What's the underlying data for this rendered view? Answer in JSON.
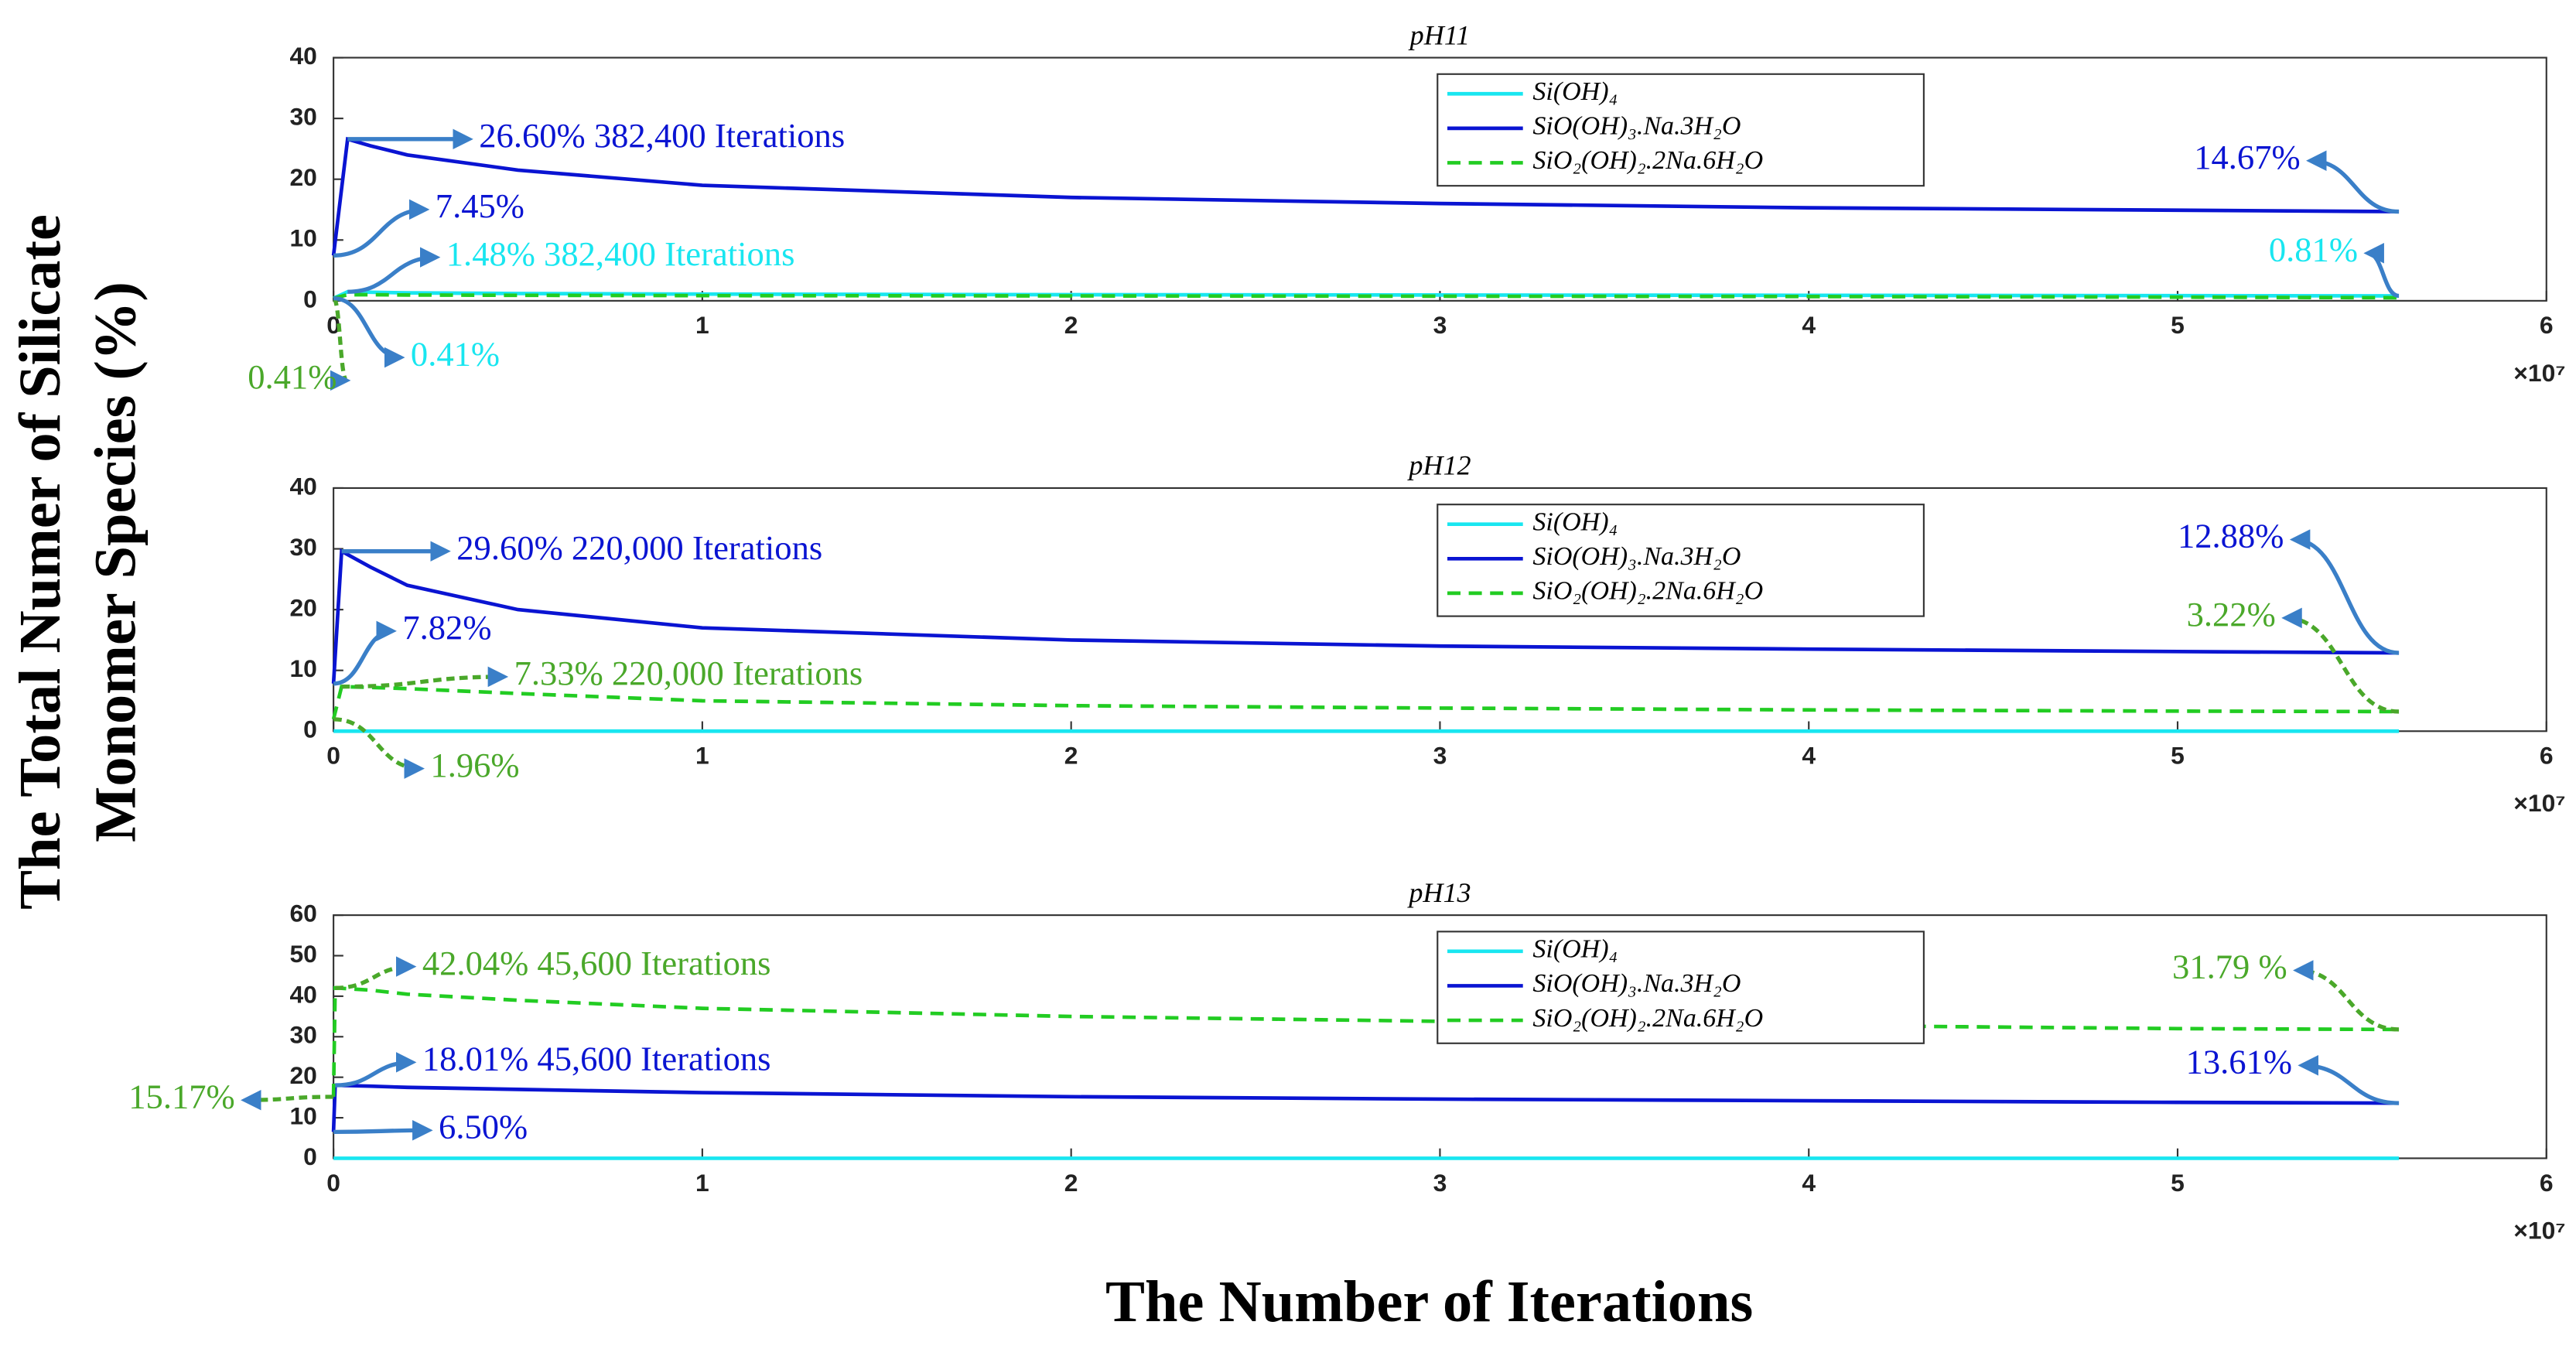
{
  "ylabel": [
    "The Total Numer of Silicate",
    "Monomer Species (%)"
  ],
  "xlabel": "The Number of Iterations",
  "chart_data": [
    {
      "type": "line",
      "title": "pH11",
      "x_multiplier": "×10⁷",
      "x": [
        0,
        0.03824,
        0.1,
        0.2,
        0.5,
        1,
        2,
        3,
        4,
        5,
        5.6
      ],
      "xlim": [
        0,
        6
      ],
      "xticks": [
        0,
        1,
        2,
        3,
        4,
        5,
        6
      ],
      "ylim": [
        0,
        40
      ],
      "yticks": [
        0,
        10,
        20,
        30,
        40
      ],
      "series": [
        {
          "name": "Si(OH)₄",
          "color": "#19e6f0",
          "linestyle": "solid",
          "values": [
            0.41,
            1.48,
            1.4,
            1.3,
            1.2,
            1.1,
            1.0,
            0.95,
            0.9,
            0.85,
            0.81
          ]
        },
        {
          "name": "SiO(OH)₃.Na.3H₂O",
          "color": "#0a14d2",
          "linestyle": "solid",
          "values": [
            7.45,
            26.6,
            25.5,
            24,
            21.5,
            19,
            17,
            16,
            15.3,
            14.9,
            14.67
          ]
        },
        {
          "name": "SiO₂(OH)₂.2Na.6H₂O",
          "color": "#22cc22",
          "linestyle": "dashed",
          "values": [
            0.41,
            1.0,
            1.0,
            0.95,
            0.9,
            0.85,
            0.8,
            0.75,
            0.7,
            0.6,
            0.5
          ]
        }
      ],
      "annotations": [
        {
          "text": "26.60% 382,400 Iterations",
          "color": "#0a14d2"
        },
        {
          "text": "7.45%",
          "color": "#0a14d2"
        },
        {
          "text": "1.48% 382,400 Iterations",
          "color": "#19e6f0"
        },
        {
          "text": "14.67%",
          "color": "#0a14d2"
        },
        {
          "text": "0.81%",
          "color": "#19e6f0"
        },
        {
          "text": "0.41%",
          "color": "#4aa82a"
        },
        {
          "text": "0.41%",
          "color": "#19e6f0"
        }
      ]
    },
    {
      "type": "line",
      "title": "pH12",
      "x_multiplier": "×10⁷",
      "x": [
        0,
        0.022,
        0.1,
        0.2,
        0.5,
        1,
        2,
        3,
        4,
        5,
        5.6
      ],
      "xlim": [
        0,
        6
      ],
      "xticks": [
        0,
        1,
        2,
        3,
        4,
        5,
        6
      ],
      "ylim": [
        0,
        40
      ],
      "yticks": [
        0,
        10,
        20,
        30,
        40
      ],
      "series": [
        {
          "name": "Si(OH)₄",
          "color": "#19e6f0",
          "linestyle": "solid",
          "values": [
            0,
            0,
            0,
            0,
            0,
            0,
            0,
            0,
            0,
            0,
            0
          ]
        },
        {
          "name": "SiO(OH)₃.Na.3H₂O",
          "color": "#0a14d2",
          "linestyle": "solid",
          "values": [
            7.82,
            29.6,
            27,
            24,
            20,
            17,
            15,
            14,
            13.5,
            13.1,
            12.88
          ]
        },
        {
          "name": "SiO₂(OH)₂.2Na.6H₂O",
          "color": "#22cc22",
          "linestyle": "dashed",
          "values": [
            1.96,
            7.33,
            7.2,
            7,
            6.2,
            5,
            4.2,
            3.8,
            3.5,
            3.3,
            3.22
          ]
        }
      ],
      "annotations": [
        {
          "text": "29.60% 220,000 Iterations",
          "color": "#0a14d2"
        },
        {
          "text": "7.82%",
          "color": "#0a14d2"
        },
        {
          "text": "7.33% 220,000 Iterations",
          "color": "#4aa82a"
        },
        {
          "text": "1.96%",
          "color": "#4aa82a"
        },
        {
          "text": "12.88%",
          "color": "#0a14d2"
        },
        {
          "text": "3.22%",
          "color": "#4aa82a"
        }
      ]
    },
    {
      "type": "line",
      "title": "pH13",
      "x_multiplier": "×10⁷",
      "x": [
        0,
        0.00456,
        0.1,
        0.2,
        0.5,
        1,
        2,
        3,
        4,
        5,
        5.6
      ],
      "xlim": [
        0,
        6
      ],
      "xticks": [
        0,
        1,
        2,
        3,
        4,
        5,
        6
      ],
      "ylim": [
        0,
        60
      ],
      "yticks": [
        0,
        10,
        20,
        30,
        40,
        50,
        60
      ],
      "series": [
        {
          "name": "Si(OH)₄",
          "color": "#19e6f0",
          "linestyle": "solid",
          "values": [
            0,
            0,
            0,
            0,
            0,
            0,
            0,
            0,
            0,
            0,
            0
          ]
        },
        {
          "name": "SiO(OH)₃.Na.3H₂O",
          "color": "#0a14d2",
          "linestyle": "solid",
          "values": [
            6.5,
            18.01,
            17.8,
            17.5,
            17,
            16.2,
            15.2,
            14.6,
            14.2,
            13.8,
            13.61
          ]
        },
        {
          "name": "SiO₂(OH)₂.2Na.6H₂O",
          "color": "#22cc22",
          "linestyle": "dashed",
          "values": [
            15.17,
            42.04,
            41.5,
            40.5,
            39,
            37,
            35,
            33.8,
            32.8,
            32,
            31.79
          ]
        }
      ],
      "annotations": [
        {
          "text": "42.04% 45,600 Iterations",
          "color": "#4aa82a"
        },
        {
          "text": "18.01% 45,600 Iterations",
          "color": "#0a14d2"
        },
        {
          "text": "15.17%",
          "color": "#4aa82a"
        },
        {
          "text": "6.50%",
          "color": "#0a14d2"
        },
        {
          "text": "13.61%",
          "color": "#0a14d2"
        },
        {
          "text": "31.79 %",
          "color": "#4aa82a"
        }
      ]
    }
  ]
}
